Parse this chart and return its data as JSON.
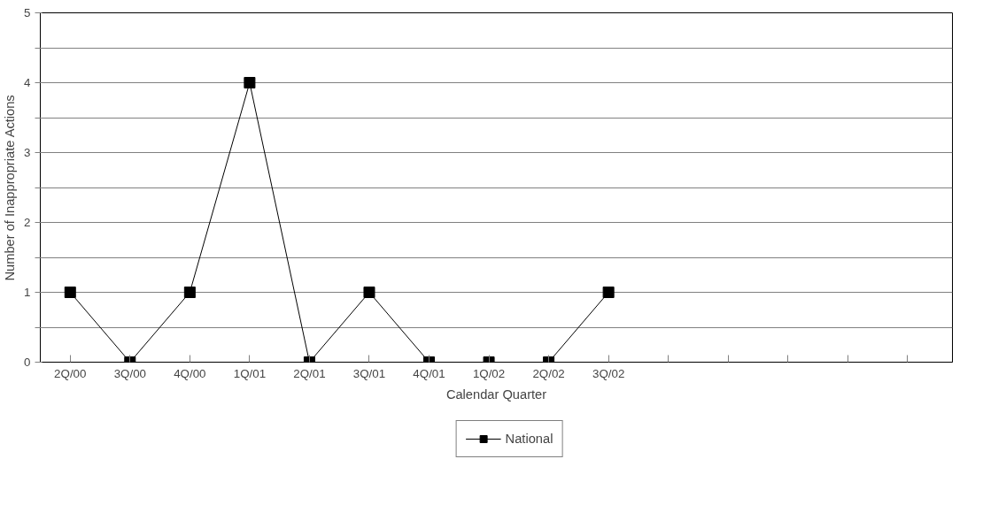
{
  "chart_data": {
    "type": "line",
    "xlabel": "Calendar Quarter",
    "ylabel": "Number of Inappropriate Actions",
    "categories": [
      "2Q/00",
      "3Q/00",
      "4Q/00",
      "1Q/01",
      "2Q/01",
      "3Q/01",
      "4Q/01",
      "1Q/02",
      "2Q/02",
      "3Q/02",
      null,
      null,
      null,
      null,
      null
    ],
    "series": [
      {
        "name": "National",
        "color": "#000000",
        "values": [
          1,
          0,
          1,
          4,
          0,
          1,
          0,
          0,
          0,
          1,
          null,
          null,
          null,
          null,
          null
        ]
      }
    ],
    "ylim": [
      0,
      5
    ],
    "yticks": [
      0,
      {
        "value": 0.5,
        "label": null
      },
      1,
      {
        "value": 1.5,
        "label": null
      },
      2,
      {
        "value": 2.5,
        "label": null
      },
      3,
      {
        "value": 3.5,
        "label": null
      },
      4,
      {
        "value": 4.5,
        "label": null
      },
      5
    ],
    "grid": "y",
    "legend": "bottom",
    "marker": "square",
    "line_style": "solid"
  }
}
